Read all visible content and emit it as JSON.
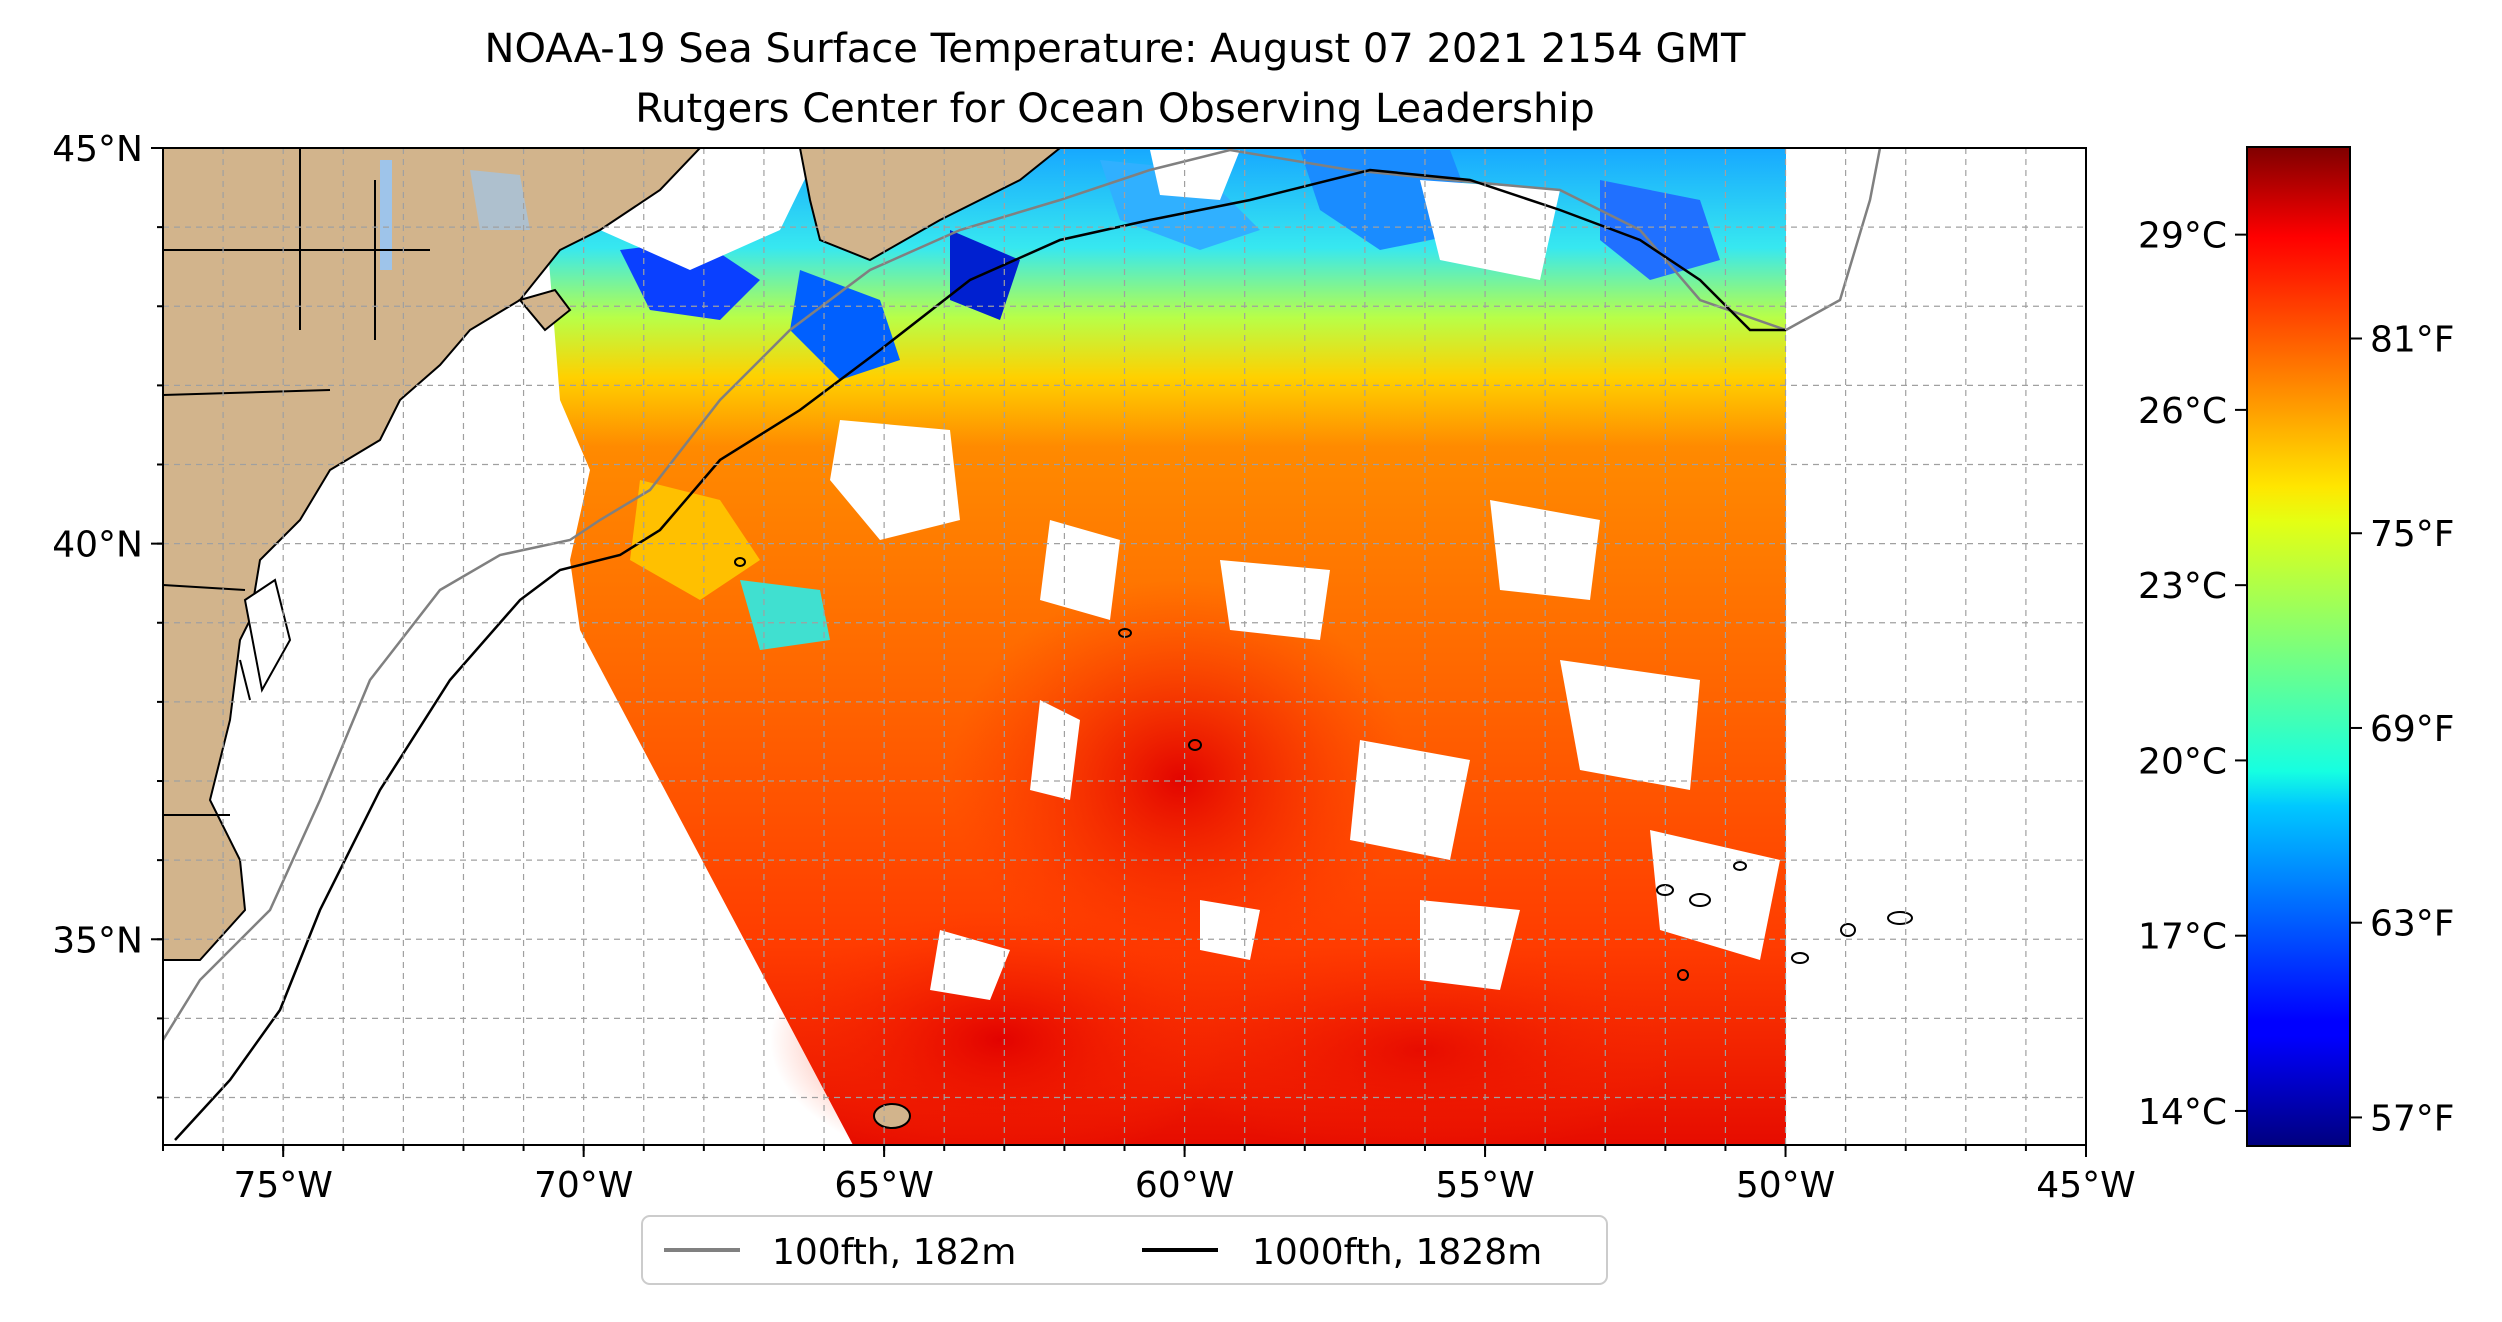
{
  "title": {
    "line1": "NOAA-19 Sea Surface Temperature: August 07 2021 2154 GMT",
    "line2": "Rutgers Center for Ocean Observing Leadership"
  },
  "map": {
    "lon_range": [
      -77,
      -45
    ],
    "lat_range": [
      32.4,
      45
    ],
    "lon_ticks": [
      {
        "value": -75,
        "label": "75°W"
      },
      {
        "value": -70,
        "label": "70°W"
      },
      {
        "value": -65,
        "label": "65°W"
      },
      {
        "value": -60,
        "label": "60°W"
      },
      {
        "value": -55,
        "label": "55°W"
      },
      {
        "value": -50,
        "label": "50°W"
      },
      {
        "value": -45,
        "label": "45°W"
      }
    ],
    "lat_ticks": [
      {
        "value": 45,
        "label": "45°N"
      },
      {
        "value": 40,
        "label": "40°N"
      },
      {
        "value": 35,
        "label": "35°N"
      }
    ],
    "gridlines": true,
    "colors": {
      "land": "#d2b48c",
      "lakes": "#9ec4ea",
      "no_data": "#ffffff",
      "isobath_100fth": "#808080",
      "isobath_1000fth": "#000000"
    }
  },
  "legend": {
    "items": [
      {
        "label": "100fth, 182m",
        "color": "#808080"
      },
      {
        "label": "1000fth, 1828m",
        "color": "#000000"
      }
    ]
  },
  "colorbar": {
    "colormap": "jet",
    "range_celsius": [
      13.4,
      30.5
    ],
    "celsius_ticks": [
      {
        "value": 14,
        "label": "14°C"
      },
      {
        "value": 17,
        "label": "17°C"
      },
      {
        "value": 20,
        "label": "20°C"
      },
      {
        "value": 23,
        "label": "23°C"
      },
      {
        "value": 26,
        "label": "26°C"
      },
      {
        "value": 29,
        "label": "29°C"
      }
    ],
    "fahrenheit_ticks": [
      {
        "value": 57,
        "label": "57°F"
      },
      {
        "value": 63,
        "label": "63°F"
      },
      {
        "value": 69,
        "label": "69°F"
      },
      {
        "value": 75,
        "label": "75°F"
      },
      {
        "value": 81,
        "label": "81°F"
      }
    ]
  }
}
